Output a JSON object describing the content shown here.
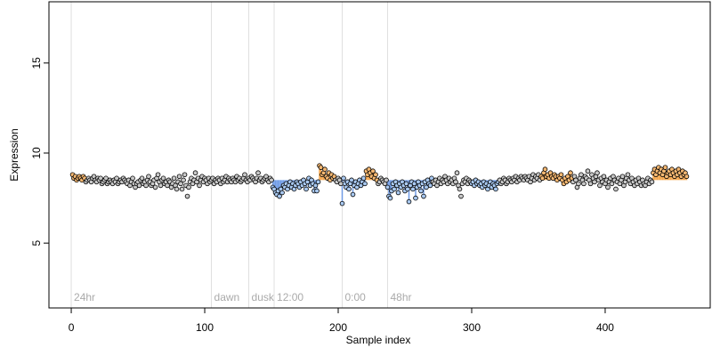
{
  "chart_data": {
    "type": "scatter",
    "xlabel": "Sample index",
    "ylabel": "Expression",
    "xlim": [
      -16.7,
      478.7
    ],
    "ylim": [
      1.4,
      18.4
    ],
    "xticks": [
      0,
      100,
      200,
      300,
      400
    ],
    "yticks": [
      5,
      10,
      15
    ],
    "baseline": 8.5,
    "annotations": [
      {
        "x": 0,
        "label": "24hr"
      },
      {
        "x": 105,
        "label": "dawn"
      },
      {
        "x": 133,
        "label": "dusk"
      },
      {
        "x": 152,
        "label": "12:00"
      },
      {
        "x": 203,
        "label": "0:00"
      },
      {
        "x": 237,
        "label": "48hr"
      }
    ],
    "point_color": "#c8c8c8",
    "regions": [
      {
        "from": 1,
        "to": 10,
        "color": "#f5a54a",
        "fill": "#f5b872"
      },
      {
        "from": 151,
        "to": 185,
        "color": "#6f9be6",
        "fill": "#a8c8f0"
      },
      {
        "from": 186,
        "to": 197,
        "color": "#f5a54a",
        "fill": "#f5b872"
      },
      {
        "from": 203,
        "to": 220,
        "color": "#6f9be6",
        "fill": "#a8c8f0"
      },
      {
        "from": 221,
        "to": 229,
        "color": "#f5a54a",
        "fill": "#f5b872"
      },
      {
        "from": 237,
        "to": 270,
        "color": "#6f9be6",
        "fill": "#a8c8f0"
      },
      {
        "from": 300,
        "to": 320,
        "color": "#6f9be6",
        "fill": "#a8c8f0"
      },
      {
        "from": 352,
        "to": 375,
        "color": "#f5a54a",
        "fill": "#f5b872"
      },
      {
        "from": 436,
        "to": 461,
        "color": "#f5a54a",
        "fill": "#f5b872"
      }
    ],
    "values": [
      8.8,
      8.6,
      8.7,
      8.5,
      8.6,
      8.7,
      8.6,
      8.5,
      8.7,
      8.6,
      8.4,
      8.5,
      8.6,
      8.5,
      8.4,
      8.6,
      8.7,
      8.5,
      8.4,
      8.6,
      8.5,
      8.6,
      8.3,
      8.4,
      8.5,
      8.6,
      8.3,
      8.4,
      8.5,
      8.4,
      8.3,
      8.5,
      8.4,
      8.6,
      8.3,
      8.4,
      8.5,
      8.4,
      8.6,
      8.5,
      8.4,
      8.3,
      8.5,
      8.2,
      8.4,
      8.6,
      8.3,
      8.1,
      8.3,
      8.4,
      8.2,
      8.5,
      8.6,
      8.3,
      8.4,
      8.2,
      8.5,
      8.7,
      8.4,
      8.2,
      8.3,
      8.5,
      8.1,
      8.6,
      8.8,
      8.4,
      8.2,
      8.5,
      8.6,
      8.3,
      8.4,
      8.2,
      8.5,
      8.4,
      8.1,
      8.3,
      8.6,
      8.2,
      8.0,
      8.4,
      8.7,
      8.3,
      8.0,
      8.5,
      8.8,
      8.2,
      7.6,
      8.1,
      8.4,
      8.6,
      8.3,
      8.5,
      8.9,
      8.4,
      8.6,
      8.2,
      8.5,
      8.7,
      8.4,
      8.6,
      8.5,
      8.3,
      8.6,
      8.4,
      8.5,
      8.6,
      8.3,
      8.5,
      8.4,
      8.6,
      8.5,
      8.3,
      8.6,
      8.4,
      8.5,
      8.7,
      8.4,
      8.6,
      8.5,
      8.4,
      8.6,
      8.5,
      8.4,
      8.7,
      8.5,
      8.6,
      8.4,
      8.5,
      8.6,
      8.8,
      8.5,
      8.4,
      8.6,
      8.5,
      8.7,
      8.6,
      8.5,
      8.4,
      8.6,
      8.9,
      8.5,
      8.6,
      8.4,
      8.5,
      8.6,
      8.7,
      8.5,
      8.4,
      8.6,
      8.5,
      8.1,
      8.0,
      7.8,
      7.7,
      7.9,
      7.6,
      8.0,
      7.8,
      8.2,
      8.1,
      8.3,
      8.0,
      8.2,
      8.4,
      8.1,
      8.3,
      8.0,
      8.2,
      8.4,
      8.3,
      8.1,
      8.4,
      8.2,
      8.5,
      8.3,
      8.0,
      8.4,
      8.6,
      8.2,
      8.5,
      8.3,
      7.9,
      8.2,
      7.9,
      8.4,
      9.3,
      9.2,
      8.8,
      8.9,
      9.1,
      8.7,
      8.6,
      8.9,
      8.5,
      8.8,
      8.6,
      8.7,
      8.5,
      8.4,
      8.6,
      8.5,
      8.3,
      7.2,
      8.6,
      8.3,
      8.1,
      8.4,
      8.0,
      8.3,
      8.5,
      7.7,
      8.2,
      8.4,
      8.1,
      8.3,
      8.5,
      8.2,
      8.4,
      8.6,
      8.3,
      9.0,
      8.8,
      9.1,
      8.9,
      8.7,
      9.0,
      8.6,
      8.8,
      8.5,
      8.3,
      8.4,
      8.6,
      8.5,
      8.4,
      8.3,
      8.5,
      8.1,
      7.6,
      7.5,
      7.9,
      8.3,
      8.0,
      8.4,
      8.2,
      7.8,
      8.3,
      8.1,
      8.4,
      8.2,
      7.9,
      8.3,
      8.0,
      7.3,
      8.2,
      8.4,
      8.0,
      8.3,
      7.5,
      8.1,
      8.4,
      8.2,
      7.9,
      8.3,
      7.6,
      8.4,
      8.1,
      8.5,
      8.3,
      8.2,
      8.6,
      8.4,
      8.3,
      8.5,
      8.2,
      8.4,
      8.6,
      8.3,
      8.5,
      8.4,
      8.7,
      8.5,
      8.3,
      8.6,
      8.4,
      8.5,
      8.3,
      8.6,
      8.4,
      8.9,
      8.2,
      8.0,
      7.6,
      8.3,
      8.5,
      8.4,
      8.6,
      8.3,
      8.5,
      8.4,
      8.3,
      8.4,
      8.2,
      8.5,
      8.3,
      8.4,
      8.2,
      8.3,
      8.1,
      8.4,
      8.2,
      8.3,
      8.0,
      8.2,
      8.4,
      8.1,
      8.3,
      8.2,
      8.0,
      8.3,
      8.4,
      8.5,
      8.3,
      8.4,
      8.6,
      8.5,
      8.3,
      8.4,
      8.6,
      8.5,
      8.4,
      8.6,
      8.5,
      8.7,
      8.4,
      8.6,
      8.5,
      8.7,
      8.6,
      8.5,
      8.7,
      8.6,
      8.5,
      8.7,
      8.4,
      8.6,
      8.8,
      8.5,
      8.7,
      8.6,
      8.8,
      8.5,
      8.7,
      8.6,
      8.9,
      9.1,
      8.7,
      8.8,
      8.6,
      8.9,
      8.7,
      8.6,
      8.8,
      8.7,
      8.5,
      8.7,
      8.6,
      8.8,
      8.5,
      8.3,
      8.6,
      8.4,
      8.7,
      8.5,
      8.9,
      8.6,
      8.4,
      8.7,
      8.5,
      8.1,
      8.3,
      8.6,
      8.8,
      8.5,
      8.3,
      8.7,
      8.6,
      9.0,
      8.5,
      8.3,
      8.8,
      8.6,
      8.4,
      8.7,
      8.9,
      8.5,
      8.2,
      8.6,
      8.4,
      8.7,
      8.3,
      8.5,
      8.1,
      8.4,
      8.6,
      8.3,
      8.7,
      8.5,
      8.0,
      8.4,
      8.6,
      8.3,
      8.5,
      8.7,
      8.2,
      8.4,
      8.6,
      8.8,
      8.5,
      8.3,
      8.6,
      8.4,
      8.2,
      8.5,
      8.3,
      8.6,
      8.4,
      8.2,
      8.5,
      8.3,
      8.2,
      8.4,
      8.6,
      8.3,
      8.5,
      8.4,
      8.9,
      9.1,
      8.8,
      9.0,
      9.2,
      8.9,
      9.1,
      8.8,
      9.0,
      9.2,
      8.7,
      8.9,
      9.0,
      8.8,
      9.1,
      8.9,
      8.7,
      9.0,
      8.8,
      9.1,
      8.9,
      8.7,
      9.0,
      8.8,
      8.9,
      8.7
    ]
  }
}
